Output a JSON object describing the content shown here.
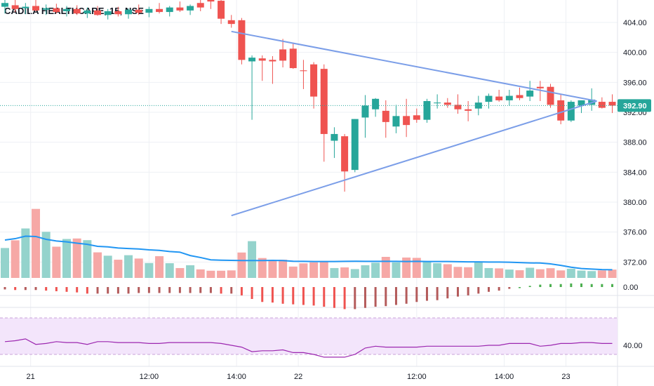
{
  "chart_title": "CADILA HEALTHCARE, 15, NSE",
  "colors": {
    "up": "#26a69a",
    "down": "#ef5350",
    "vol_up": "#94d3cc",
    "vol_down": "#f6a8a6",
    "ma": "#2196f3",
    "triangle": "#7b9ee8",
    "rsi_line": "#9c27b0",
    "rsi_band": "#f3e5fb",
    "grid": "#eef0f4",
    "price_line": "#26a69a"
  },
  "chart_data": {
    "type": "candlestick",
    "symbol": "CADILA HEALTHCARE, 15, NSE",
    "ylim": [
      369.5,
      407
    ],
    "y_ticks": [
      404,
      400,
      396,
      392,
      388,
      384,
      380,
      376,
      372
    ],
    "y_tick_labels": [
      "404.00",
      "400.00",
      "396.00",
      "392.00",
      "388.00",
      "384.00",
      "380.00",
      "376.00",
      "372.00"
    ],
    "x_ticks": [
      "21",
      "12:00",
      "14:00",
      "22",
      "12:00",
      "14:00",
      "23"
    ],
    "x_tick_index": [
      2.5,
      14,
      22.5,
      28.5,
      40,
      48.5,
      54.5
    ],
    "last_price": 392.9,
    "last_price_label": "392.90",
    "candles": [
      [
        406.1,
        407.2,
        405.2,
        406.6
      ],
      [
        406.3,
        407.0,
        405.4,
        405.8
      ],
      [
        405.9,
        406.6,
        405.1,
        406.1
      ],
      [
        406.2,
        407.0,
        405.5,
        405.6
      ],
      [
        405.7,
        406.4,
        405.0,
        405.9
      ],
      [
        405.9,
        406.5,
        405.2,
        405.4
      ],
      [
        405.5,
        406.2,
        404.8,
        405.8
      ],
      [
        405.8,
        406.3,
        405.0,
        405.2
      ],
      [
        405.2,
        406.0,
        404.6,
        405.6
      ],
      [
        405.6,
        406.2,
        404.9,
        405.0
      ],
      [
        405.0,
        405.8,
        404.4,
        405.5
      ],
      [
        405.5,
        406.1,
        404.8,
        405.1
      ],
      [
        405.1,
        405.9,
        404.5,
        405.7
      ],
      [
        405.7,
        406.4,
        405.0,
        405.3
      ],
      [
        405.3,
        406.1,
        404.7,
        405.8
      ],
      [
        405.8,
        406.6,
        405.2,
        405.4
      ],
      [
        405.4,
        406.2,
        404.8,
        406.0
      ],
      [
        406.0,
        406.8,
        405.4,
        405.6
      ],
      [
        405.6,
        406.4,
        405.0,
        406.2
      ],
      [
        406.6,
        407.2,
        405.5,
        406.0
      ],
      [
        407.5,
        407.8,
        405.8,
        406.8
      ],
      [
        406.9,
        407.3,
        403.8,
        404.5
      ],
      [
        404.3,
        405.0,
        403.3,
        403.8
      ],
      [
        404.3,
        404.6,
        398.4,
        399.0
      ],
      [
        398.8,
        399.6,
        391.0,
        399.3
      ],
      [
        399.2,
        399.6,
        396.2,
        398.9
      ],
      [
        399.0,
        399.5,
        395.8,
        398.8
      ],
      [
        400.4,
        401.8,
        398.0,
        398.9
      ],
      [
        400.5,
        401.2,
        397.8,
        397.9
      ],
      [
        397.6,
        399.0,
        395.1,
        397.5
      ],
      [
        398.4,
        398.7,
        392.5,
        394.1
      ],
      [
        397.8,
        398.4,
        385.4,
        389.1
      ],
      [
        388.2,
        390.0,
        385.9,
        389.1
      ],
      [
        388.8,
        389.1,
        381.4,
        384.1
      ],
      [
        384.3,
        391.1,
        384.0,
        391.1
      ],
      [
        391.3,
        394.3,
        388.6,
        392.9
      ],
      [
        392.4,
        393.9,
        391.4,
        393.8
      ],
      [
        392.2,
        393.6,
        388.6,
        390.7
      ],
      [
        390.1,
        393.0,
        389.2,
        391.5
      ],
      [
        391.5,
        393.8,
        388.7,
        390.3
      ],
      [
        391.6,
        392.5,
        390.6,
        391.0
      ],
      [
        391.0,
        393.8,
        390.6,
        393.5
      ],
      [
        393.2,
        394.4,
        392.5,
        393.3
      ],
      [
        393.3,
        393.9,
        392.6,
        393.0
      ],
      [
        393.0,
        394.4,
        391.8,
        392.4
      ],
      [
        392.4,
        393.5,
        390.8,
        392.2
      ],
      [
        392.5,
        394.2,
        391.6,
        393.3
      ],
      [
        393.4,
        394.5,
        392.5,
        394.2
      ],
      [
        394.1,
        395.0,
        393.4,
        393.6
      ],
      [
        393.6,
        395.0,
        392.9,
        394.2
      ],
      [
        394.3,
        395.3,
        393.6,
        393.9
      ],
      [
        394.1,
        396.2,
        393.5,
        394.9
      ],
      [
        395.4,
        396.2,
        393.5,
        395.2
      ],
      [
        395.4,
        395.8,
        392.6,
        393.0
      ],
      [
        393.6,
        394.4,
        390.4,
        390.9
      ],
      [
        390.9,
        393.6,
        390.7,
        393.4
      ],
      [
        392.9,
        393.6,
        391.9,
        393.6
      ],
      [
        393.0,
        395.2,
        392.2,
        393.7
      ],
      [
        393.4,
        394.0,
        392.5,
        392.6
      ],
      [
        393.4,
        394.4,
        391.9,
        392.9
      ]
    ],
    "volume": [
      17.9,
      22.5,
      29.6,
      41.3,
      27.6,
      18.7,
      23.3,
      23.6,
      22.6,
      15.3,
      13.3,
      10.9,
      13.6,
      11.6,
      8.9,
      13.0,
      8.8,
      5.9,
      7.6,
      5.1,
      4.3,
      4.3,
      4.5,
      15.2,
      22.0,
      11.9,
      10.5,
      10.9,
      6.8,
      8.7,
      9.3,
      9.5,
      5.9,
      6.3,
      5.3,
      7.6,
      9.1,
      12.6,
      9.3,
      12.2,
      12.0,
      9.6,
      8.8,
      8.2,
      6.6,
      6.4,
      9.4,
      5.9,
      5.7,
      5.0,
      4.6,
      6.1,
      5.2,
      5.8,
      4.5,
      5.5,
      4.4,
      4.1,
      4.5,
      5.0
    ],
    "volume_ma": [
      22.7,
      23.5,
      25.0,
      24.8,
      23.1,
      22.1,
      21.6,
      20.8,
      20.1,
      18.9,
      18.6,
      17.9,
      17.6,
      17.3,
      16.8,
      16.5,
      15.8,
      15.4,
      13.4,
      12.2,
      10.8,
      10.6,
      10.5,
      10.4,
      10.4,
      10.4,
      10.5,
      10.4,
      10.0,
      9.9,
      9.8,
      9.8,
      9.8,
      9.9,
      10.0,
      9.9,
      9.9,
      9.9,
      9.9,
      9.8,
      9.9,
      9.8,
      9.8,
      9.8,
      9.7,
      9.6,
      9.6,
      9.5,
      9.5,
      9.4,
      9.2,
      9.0,
      8.9,
      8.4,
      7.5,
      6.4,
      5.6,
      5.3,
      5.0,
      4.9
    ],
    "histogram": [
      -0.4,
      -0.5,
      -0.5,
      -0.5,
      -0.6,
      -0.7,
      -0.8,
      -0.9,
      -1.1,
      -1.1,
      -1.1,
      -1.1,
      -1.1,
      -1.0,
      -1.0,
      -1.0,
      -1.0,
      -1.0,
      -1.0,
      -1.0,
      -1.0,
      -1.1,
      -1.1,
      -1.4,
      -2.0,
      -2.5,
      -2.6,
      -2.8,
      -2.9,
      -3.0,
      -3.1,
      -3.3,
      -3.5,
      -3.7,
      -3.7,
      -3.5,
      -3.3,
      -3.2,
      -3.0,
      -2.8,
      -2.5,
      -2.3,
      -2.2,
      -1.9,
      -1.6,
      -1.4,
      -1.1,
      -0.8,
      -0.6,
      -0.3,
      0.0,
      0.2,
      0.4,
      0.5,
      0.5,
      0.6,
      0.6,
      0.5,
      0.5,
      0.5
    ],
    "histogram_zero_label": "0.00",
    "rsi": [
      44,
      45,
      47,
      41,
      42,
      44,
      43,
      43,
      41,
      44,
      44,
      43,
      43,
      43,
      42,
      42,
      43,
      43,
      43,
      43,
      43,
      42,
      40,
      38,
      33,
      34,
      34,
      35,
      32,
      32,
      30,
      27,
      27,
      27,
      30,
      37,
      39,
      38,
      38,
      38,
      38,
      39,
      39,
      39,
      39,
      39,
      39,
      40,
      40,
      42,
      42,
      42,
      39,
      40,
      42,
      42,
      43,
      43,
      42,
      42
    ],
    "rsi_band": [
      30,
      70
    ],
    "rsi_ylim": [
      20,
      80
    ],
    "rsi_label": "40.00",
    "triangle_lines": [
      {
        "from": [
          22.0,
          402.8
        ],
        "to": [
          57.5,
          393.5
        ]
      },
      {
        "from": [
          22.0,
          378.2
        ],
        "to": [
          57.5,
          393.5
        ]
      }
    ]
  }
}
